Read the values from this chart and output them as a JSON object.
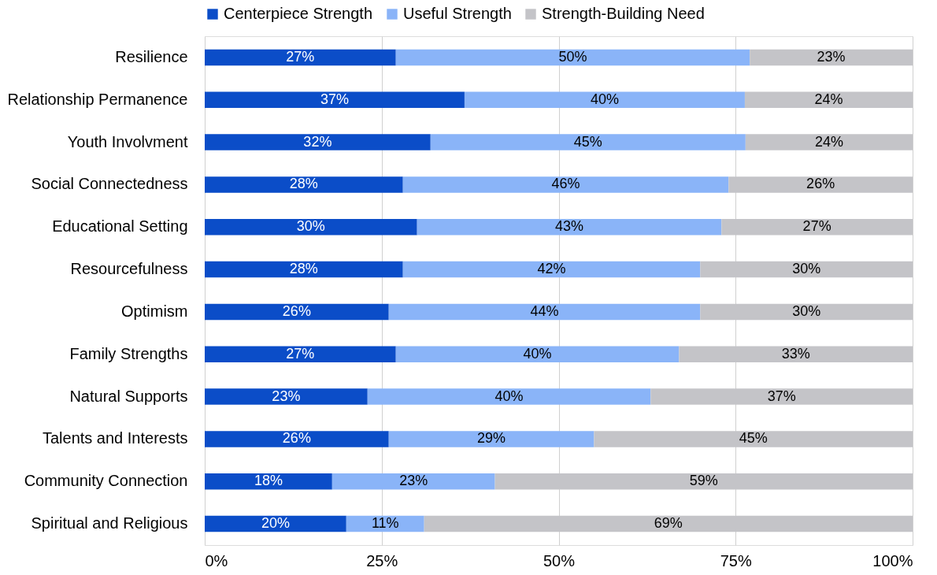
{
  "chart_data": {
    "type": "bar",
    "orientation": "horizontal",
    "stacked": true,
    "categories": [
      "Resilience",
      "Relationship Permanence",
      "Youth Involvment",
      "Social Connectedness",
      "Educational Setting",
      "Resourcefulness",
      "Optimism",
      "Family Strengths",
      "Natural Supports",
      "Talents and Interests",
      "Community Connection",
      "Spiritual and Religious"
    ],
    "series": [
      {
        "name": "Centerpiece Strength",
        "color": "#0b4dc8",
        "values": [
          27,
          36.7,
          31.9,
          28,
          30,
          28,
          26,
          27,
          23,
          26,
          18,
          20
        ],
        "value_labels": [
          "27%",
          "37%",
          "32%",
          "28%",
          "30%",
          "28%",
          "26%",
          "27%",
          "23%",
          "26%",
          "18%",
          "20%"
        ]
      },
      {
        "name": "Useful Strength",
        "color": "#8ab4f8",
        "values": [
          50,
          39.6,
          44.5,
          46,
          43,
          42,
          44,
          40,
          40,
          29,
          23,
          11
        ],
        "value_labels": [
          "50%",
          "40%",
          "45%",
          "46%",
          "43%",
          "42%",
          "44%",
          "40%",
          "40%",
          "29%",
          "23%",
          "11%"
        ]
      },
      {
        "name": "Strength-Building Need",
        "color": "#c4c4c8",
        "values": [
          23,
          23.7,
          23.6,
          26,
          27,
          30,
          30,
          33,
          37,
          45,
          59,
          69
        ],
        "value_labels": [
          "23%",
          "24%",
          "24%",
          "26%",
          "27%",
          "30%",
          "30%",
          "33%",
          "37%",
          "45%",
          "59%",
          "69%"
        ]
      }
    ],
    "xlim": [
      0,
      100
    ],
    "xticks": [
      {
        "value": 0,
        "label": "0%"
      },
      {
        "value": 25,
        "label": "25%"
      },
      {
        "value": 50,
        "label": "50%"
      },
      {
        "value": 75,
        "label": "75%"
      },
      {
        "value": 100,
        "label": "100%"
      }
    ],
    "grid": "x",
    "legend": "top"
  }
}
